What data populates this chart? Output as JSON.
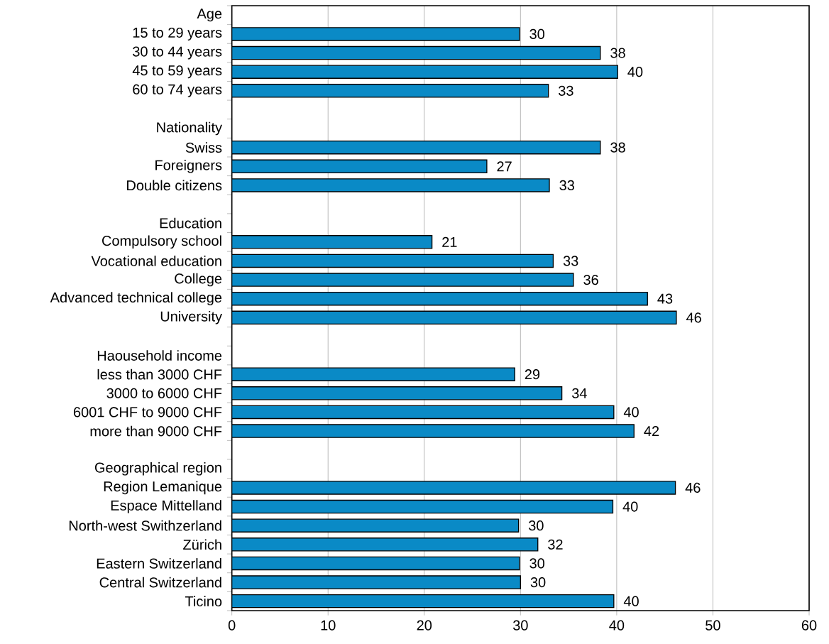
{
  "chart_data": {
    "type": "bar",
    "orientation": "horizontal",
    "color": "#0a8ac6",
    "categories": [
      "Age",
      "15 to 29 years",
      "30 to 44 years",
      "45 to 59 years",
      "60 to 74 years",
      null,
      "Nationality",
      "Swiss",
      "Foreigners",
      "Double citizens",
      null,
      "Education",
      "Compulsory school",
      "Vocational education",
      "College",
      "Advanced technical college",
      "University",
      null,
      "Haousehold income",
      "less than 3000 CHF",
      "3000 to 6000 CHF",
      "6001 CHF to 9000 CHF",
      "more than 9000 CHF",
      null,
      "Geographical region",
      "Region Lemanique",
      "Espace Mittelland",
      "North-west Swithzerland",
      "Zürich",
      "Eastern Switzerland",
      "Central Switzerland",
      "Ticino"
    ],
    "values": [
      null,
      29.9,
      38.3,
      40.1,
      32.9,
      null,
      null,
      38.3,
      26.5,
      33.0,
      null,
      null,
      20.8,
      33.4,
      35.5,
      43.2,
      46.2,
      null,
      null,
      29.4,
      34.3,
      39.7,
      41.8,
      null,
      null,
      46.1,
      39.6,
      29.8,
      31.8,
      29.9,
      30.0,
      39.7
    ],
    "value_labels": [
      null,
      "30",
      "38",
      "40",
      "33",
      null,
      null,
      "38",
      "27",
      "33",
      null,
      null,
      "21",
      "33",
      "36",
      "43",
      "46",
      null,
      null,
      "29",
      "34",
      "40",
      "42",
      null,
      null,
      "46",
      "40",
      "30",
      "32",
      "30",
      "30",
      "40"
    ],
    "xlim": [
      0,
      60
    ],
    "xticks": [
      0,
      10,
      20,
      30,
      40,
      50,
      60
    ],
    "grid": "x"
  }
}
